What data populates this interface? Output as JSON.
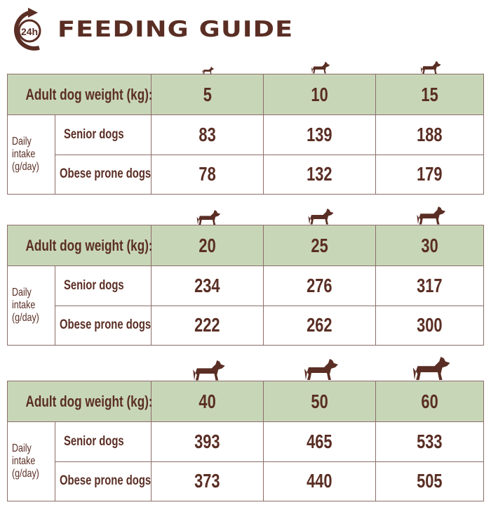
{
  "header": {
    "title": "FEEDING GUIDE",
    "logo_text": "24h",
    "logo_icon": "clock-24h-icon"
  },
  "colors": {
    "brown": "#5a2e24",
    "green": "#c8d6b8"
  },
  "tables": [
    {
      "weight_label": "Adult dog weight (kg):",
      "daily_label_1": "Daily",
      "daily_label_2": "intake",
      "daily_label_3": "(g/day)",
      "senior_label": "Senior dogs",
      "obese_label": "Obese prone dogs",
      "weights": [
        "5",
        "10",
        "15"
      ],
      "senior": [
        "83",
        "139",
        "188"
      ],
      "obese": [
        "78",
        "132",
        "179"
      ]
    },
    {
      "weight_label": "Adult dog weight (kg):",
      "daily_label_1": "Daily",
      "daily_label_2": "intake",
      "daily_label_3": "(g/day)",
      "senior_label": "Senior dogs",
      "obese_label": "Obese prone dogs",
      "weights": [
        "20",
        "25",
        "30"
      ],
      "senior": [
        "234",
        "276",
        "317"
      ],
      "obese": [
        "222",
        "262",
        "300"
      ]
    },
    {
      "weight_label": "Adult dog weight (kg):",
      "daily_label_1": "Daily",
      "daily_label_2": "intake",
      "daily_label_3": "(g/day)",
      "senior_label": "Senior dogs",
      "obese_label": "Obese prone dogs",
      "weights": [
        "40",
        "50",
        "60"
      ],
      "senior": [
        "393",
        "465",
        "533"
      ],
      "obese": [
        "373",
        "440",
        "505"
      ]
    }
  ]
}
